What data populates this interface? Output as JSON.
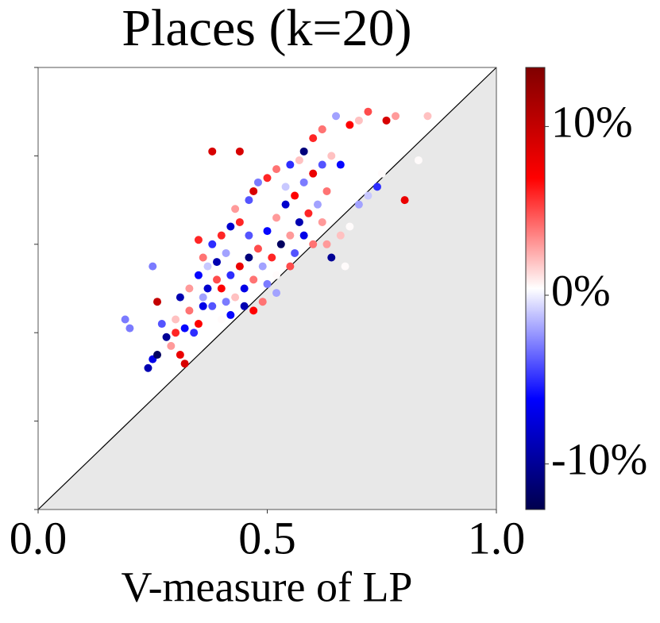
{
  "chart_data": {
    "type": "scatter",
    "title": "Places (k=20)",
    "x_label": "V-measure of LP",
    "xlim": [
      0,
      1
    ],
    "ylim": [
      0,
      1
    ],
    "xticks": [
      {
        "value": 0,
        "label": "0.0"
      },
      {
        "value": 0.5,
        "label": "0.5"
      },
      {
        "value": 1,
        "label": "1.0"
      }
    ],
    "yticks": [
      0,
      0.2,
      0.4,
      0.6,
      0.8,
      1
    ],
    "colormap": "seismic",
    "clim": [
      -12.7,
      13.5
    ],
    "cticks": [
      {
        "value": 10,
        "label": "10%"
      },
      {
        "value": 0,
        "label": "0%"
      },
      {
        "value": -10,
        "label": "-10%"
      }
    ],
    "x": [
      0.19,
      0.2,
      0.25,
      0.26,
      0.32,
      0.31,
      0.28,
      0.3,
      0.27,
      0.32,
      0.35,
      0.33,
      0.36,
      0.25,
      0.26,
      0.35,
      0.36,
      0.38,
      0.39,
      0.4,
      0.42,
      0.44,
      0.43,
      0.46,
      0.47,
      0.48,
      0.5,
      0.52,
      0.55,
      0.57,
      0.58,
      0.6,
      0.62,
      0.65,
      0.68,
      0.7,
      0.72,
      0.76,
      0.78,
      0.85,
      0.83,
      0.8,
      0.75,
      0.74,
      0.72,
      0.7,
      0.68,
      0.66,
      0.64,
      0.67,
      0.6,
      0.62,
      0.58,
      0.56,
      0.55,
      0.52,
      0.5,
      0.49,
      0.47,
      0.45,
      0.42,
      0.4,
      0.38,
      0.37,
      0.4,
      0.42,
      0.44,
      0.46,
      0.48,
      0.5,
      0.52,
      0.54,
      0.56,
      0.58,
      0.6,
      0.62,
      0.64,
      0.66,
      0.63,
      0.61,
      0.59,
      0.57,
      0.55,
      0.53,
      0.51,
      0.49,
      0.47,
      0.45,
      0.43,
      0.41,
      0.39,
      0.37,
      0.35,
      0.33,
      0.31,
      0.34,
      0.3,
      0.29,
      0.24,
      0.38,
      0.44,
      0.62,
      0.54,
      0.46,
      0.41,
      0.36,
      0.52,
      0.63
    ],
    "y": [
      0.43,
      0.41,
      0.34,
      0.35,
      0.33,
      0.35,
      0.39,
      0.4,
      0.42,
      0.41,
      0.42,
      0.45,
      0.48,
      0.55,
      0.47,
      0.61,
      0.57,
      0.6,
      0.56,
      0.62,
      0.64,
      0.65,
      0.68,
      0.7,
      0.72,
      0.74,
      0.75,
      0.77,
      0.78,
      0.79,
      0.81,
      0.84,
      0.86,
      0.89,
      0.87,
      0.88,
      0.9,
      0.88,
      0.89,
      0.89,
      0.79,
      0.7,
      0.76,
      0.73,
      0.71,
      0.69,
      0.64,
      0.62,
      0.57,
      0.55,
      0.6,
      0.65,
      0.62,
      0.58,
      0.55,
      0.53,
      0.51,
      0.47,
      0.45,
      0.46,
      0.44,
      0.43,
      0.46,
      0.5,
      0.5,
      0.53,
      0.55,
      0.57,
      0.59,
      0.63,
      0.66,
      0.69,
      0.71,
      0.74,
      0.76,
      0.78,
      0.8,
      0.78,
      0.72,
      0.69,
      0.67,
      0.65,
      0.62,
      0.6,
      0.57,
      0.55,
      0.52,
      0.5,
      0.48,
      0.47,
      0.52,
      0.55,
      0.53,
      0.5,
      0.48,
      0.4,
      0.43,
      0.37,
      0.32,
      0.81,
      0.81,
      0.86,
      0.73,
      0.62,
      0.58,
      0.46,
      0.49,
      0.6
    ],
    "c": [
      -3,
      -3,
      -7,
      -12,
      9,
      8,
      -10,
      6,
      -4,
      -6,
      7,
      4,
      -2,
      -3,
      10,
      6,
      4,
      -5,
      -9,
      6,
      -8,
      6,
      3,
      -4,
      9,
      -3,
      6,
      4,
      -5,
      2,
      -11,
      6,
      5,
      -2,
      7,
      2,
      5,
      9,
      3,
      2,
      0.5,
      8,
      0.5,
      -5,
      -1,
      -2,
      0.5,
      2,
      -10,
      0.5,
      4,
      3,
      -7,
      -4,
      5,
      0.5,
      -3,
      4,
      7,
      -9,
      -6,
      0.5,
      -4,
      -8,
      7,
      -5,
      8,
      -11,
      5,
      -6,
      3,
      -8,
      7,
      -3,
      8,
      -4,
      2,
      -6,
      4,
      -2,
      6,
      -9,
      3,
      -12,
      6,
      -2,
      4,
      -7,
      2,
      -3,
      5,
      -1,
      -6,
      3,
      -9,
      -5,
      2,
      3,
      -9,
      9,
      9,
      4,
      -1,
      -4,
      -2,
      -7,
      -2,
      3
    ]
  }
}
